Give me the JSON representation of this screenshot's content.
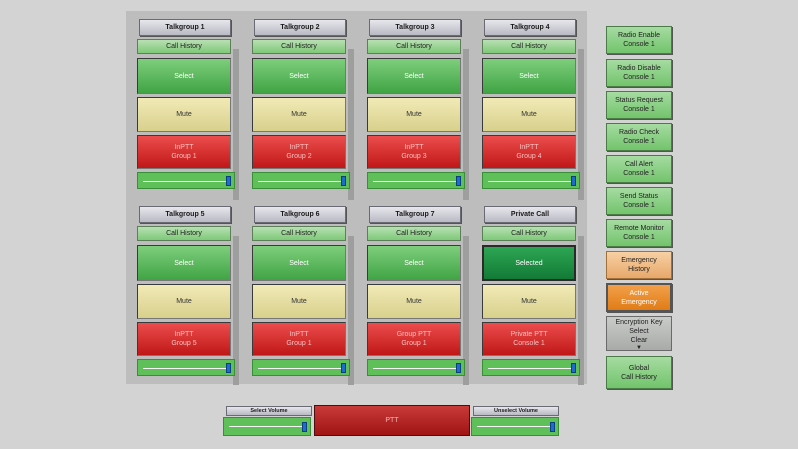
{
  "groups": [
    {
      "title": "Talkgroup 1",
      "history": "Call History",
      "select": "Select",
      "mute": "Mute",
      "ptt1": "InPTT",
      "ptt2": "Group 1"
    },
    {
      "title": "Talkgroup 2",
      "history": "Call History",
      "select": "Select",
      "mute": "Mute",
      "ptt1": "InPTT",
      "ptt2": "Group 2"
    },
    {
      "title": "Talkgroup 3",
      "history": "Call History",
      "select": "Select",
      "mute": "Mute",
      "ptt1": "InPTT",
      "ptt2": "Group 3"
    },
    {
      "title": "Talkgroup 4",
      "history": "Call History",
      "select": "Select",
      "mute": "Mute",
      "ptt1": "InPTT",
      "ptt2": "Group 4"
    },
    {
      "title": "Talkgroup 5",
      "history": "Call History",
      "select": "Select",
      "mute": "Mute",
      "ptt1": "InPTT",
      "ptt2": "Group 5"
    },
    {
      "title": "Talkgroup 6",
      "history": "Call History",
      "select": "Select",
      "mute": "Mute",
      "ptt1": "InPTT",
      "ptt2": "Group 1"
    },
    {
      "title": "Talkgroup 7",
      "history": "Call History",
      "select": "Select",
      "mute": "Mute",
      "ptt1": "Group PTT",
      "ptt2": "Group 1"
    },
    {
      "title": "Private Call",
      "history": "Call History",
      "select": "Selected",
      "mute": "Mute",
      "ptt1": "Private PTT",
      "ptt2": "Console 1"
    }
  ],
  "sidebar": {
    "radio_enable": [
      "Radio Enable",
      "Console 1"
    ],
    "radio_disable": [
      "Radio Disable",
      "Console 1"
    ],
    "status_request": [
      "Status Request",
      "Console 1"
    ],
    "radio_check": [
      "Radio Check",
      "Console 1"
    ],
    "call_alert": [
      "Call Alert",
      "Console 1"
    ],
    "send_status": [
      "Send Status",
      "Console 1"
    ],
    "remote_monitor": [
      "Remote Monitor",
      "Console 1"
    ],
    "emergency_history": [
      "Emergency",
      "History"
    ],
    "active_emergency": [
      "Active",
      "Emergency"
    ],
    "encryption": [
      "Encryption Key",
      "Select",
      "Clear"
    ],
    "global_history": [
      "Global",
      "Call History"
    ]
  },
  "bottom": {
    "select_volume": "Select Volume",
    "unselect_volume": "Unselect Volume",
    "ptt": "PTT"
  },
  "colors": {
    "select_green": "#40a444",
    "selected_green": "#137a36",
    "mute_yellow": "#d8d08c",
    "ptt_red": "#c01717",
    "emergency_orange": "#e07c17",
    "slider_thumb": "#1d6cd0"
  }
}
